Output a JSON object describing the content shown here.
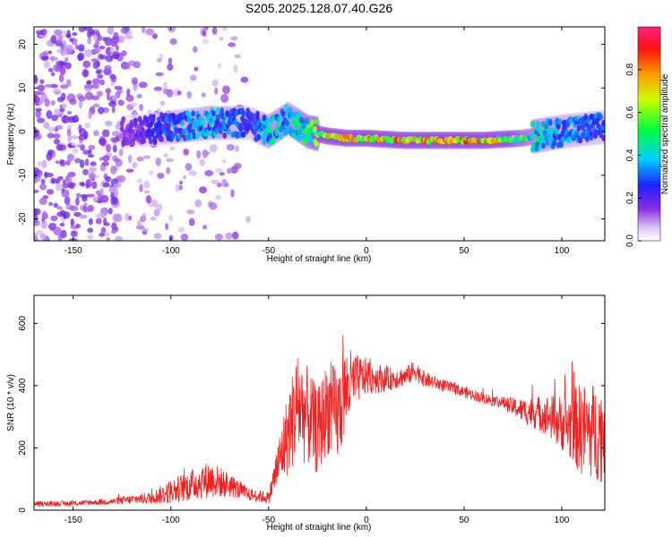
{
  "title": "S205.2025.128.07.40.G26",
  "chart_data": [
    {
      "type": "heatmap",
      "xlabel": "Height of straight line (km)",
      "ylabel": "Frequency (Hz)",
      "xlim": [
        -170,
        122
      ],
      "ylim": [
        -25,
        24
      ],
      "xticks": [
        -150,
        -100,
        -50,
        0,
        50,
        100
      ],
      "yticks": [
        -20,
        -10,
        0,
        10,
        20
      ],
      "colorbar": {
        "label": "Normalized spectral amplitude",
        "range": [
          0.0,
          1.0
        ],
        "ticks": [
          "0.0",
          "0.2",
          "0.4",
          "0.6",
          "0.8"
        ]
      },
      "ridge": {
        "description_points_x_km": [
          -120,
          -100,
          -80,
          -60,
          -50,
          -40,
          -30,
          -20,
          -10,
          0,
          20,
          40,
          60,
          80,
          100,
          120
        ],
        "frequency_hz": [
          0,
          1,
          2,
          2,
          0,
          3,
          0,
          -1,
          -1.5,
          -1.5,
          -2,
          -2,
          -2,
          -1.5,
          0,
          1
        ],
        "peak_amplitude": [
          0.2,
          0.35,
          0.45,
          0.3,
          0.5,
          0.45,
          0.6,
          0.8,
          0.9,
          0.85,
          0.9,
          0.95,
          0.9,
          0.6,
          0.4,
          0.35
        ]
      }
    },
    {
      "type": "line",
      "xlabel": "Height of straight line (km)",
      "ylabel": "SNR (10 * v/v)",
      "xlim": [
        -170,
        122
      ],
      "ylim": [
        0,
        690
      ],
      "xticks": [
        -150,
        -100,
        -50,
        0,
        50,
        100
      ],
      "yticks": [
        0,
        200,
        400,
        600
      ],
      "series": [
        {
          "name": "SNR",
          "color": "#ee2222",
          "x": [
            -170,
            -150,
            -130,
            -110,
            -100,
            -90,
            -80,
            -70,
            -60,
            -50,
            -45,
            -40,
            -35,
            -30,
            -25,
            -20,
            -15,
            -10,
            -5,
            0,
            10,
            20,
            25,
            30,
            40,
            50,
            60,
            70,
            80,
            90,
            100,
            110,
            120
          ],
          "y": [
            20,
            22,
            28,
            40,
            60,
            80,
            100,
            80,
            50,
            40,
            150,
            250,
            340,
            300,
            250,
            330,
            300,
            390,
            420,
            430,
            420,
            430,
            450,
            420,
            400,
            380,
            360,
            345,
            320,
            310,
            280,
            260,
            250
          ],
          "noise_amplitude": [
            8,
            8,
            10,
            20,
            40,
            50,
            60,
            40,
            20,
            20,
            80,
            140,
            180,
            160,
            140,
            150,
            160,
            140,
            80,
            60,
            40,
            30,
            35,
            25,
            20,
            18,
            18,
            20,
            40,
            60,
            90,
            150,
            160
          ]
        }
      ]
    }
  ]
}
